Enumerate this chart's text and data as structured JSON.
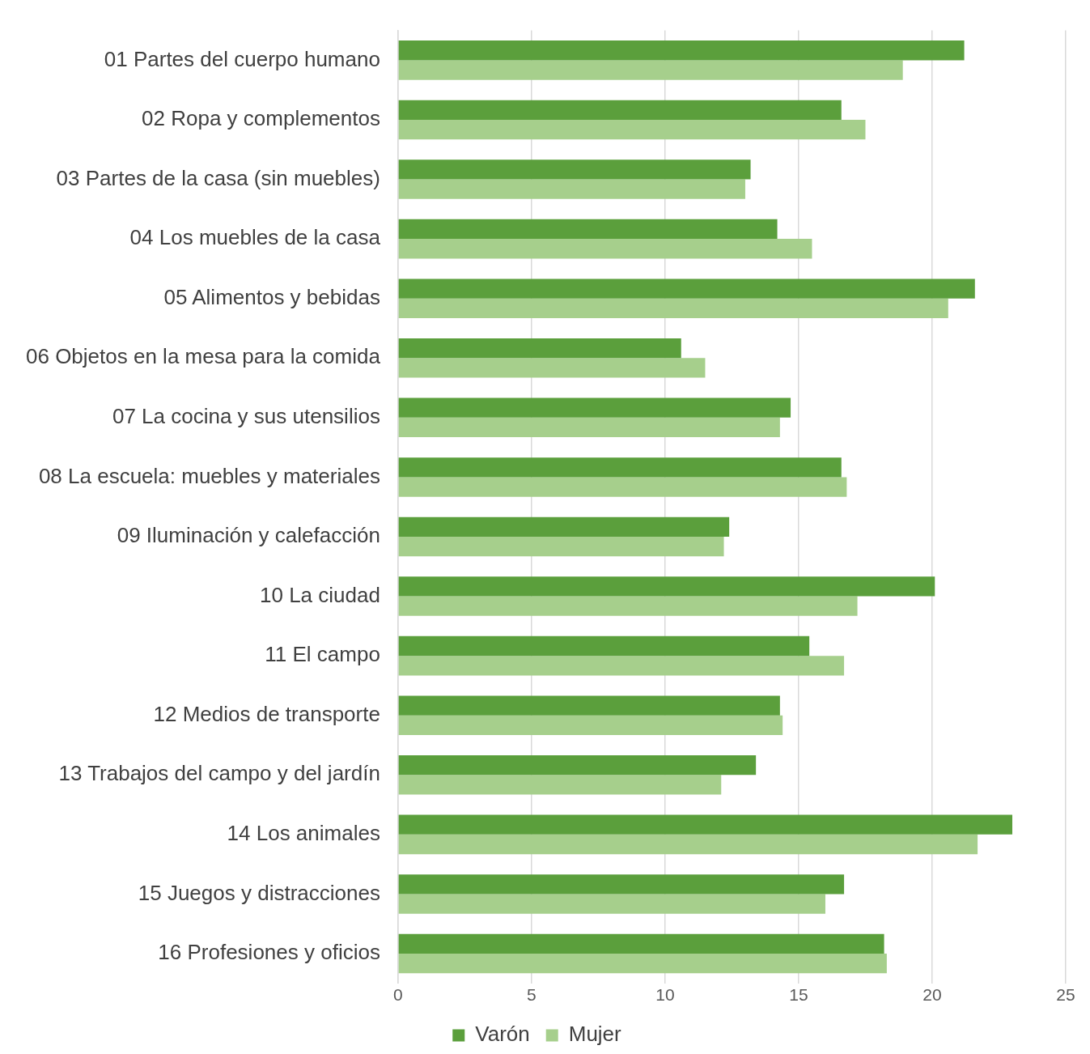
{
  "chart_data": {
    "type": "bar",
    "orientation": "horizontal",
    "categories": [
      "01 Partes del cuerpo humano",
      "02 Ropa y complementos",
      "03 Partes de la casa (sin muebles)",
      "04 Los muebles de la casa",
      "05 Alimentos y bebidas",
      "06 Objetos en la mesa para la comida",
      "07 La cocina y sus utensilios",
      "08 La escuela: muebles y materiales",
      "09 Iluminación y calefacción",
      "10 La ciudad",
      "11 El campo",
      "12 Medios de transporte",
      "13 Trabajos del campo y del jardín",
      "14 Los animales",
      "15 Juegos y distracciones",
      "16 Profesiones y oficios"
    ],
    "series": [
      {
        "name": "Varón",
        "color": "#5b9f3c",
        "values": [
          21.2,
          16.6,
          13.2,
          14.2,
          21.6,
          10.6,
          14.7,
          16.6,
          12.4,
          20.1,
          15.4,
          14.3,
          13.4,
          23.0,
          16.7,
          18.2
        ]
      },
      {
        "name": "Mujer",
        "color": "#a6cf8c",
        "values": [
          18.9,
          17.5,
          13.0,
          15.5,
          20.6,
          11.5,
          14.3,
          16.8,
          12.2,
          17.2,
          16.7,
          14.4,
          12.1,
          21.7,
          16.0,
          18.3
        ]
      }
    ],
    "xlim": [
      0,
      25
    ],
    "xticks": [
      0,
      5,
      10,
      15,
      20,
      25
    ],
    "grid": "x",
    "legend": "bottom"
  }
}
